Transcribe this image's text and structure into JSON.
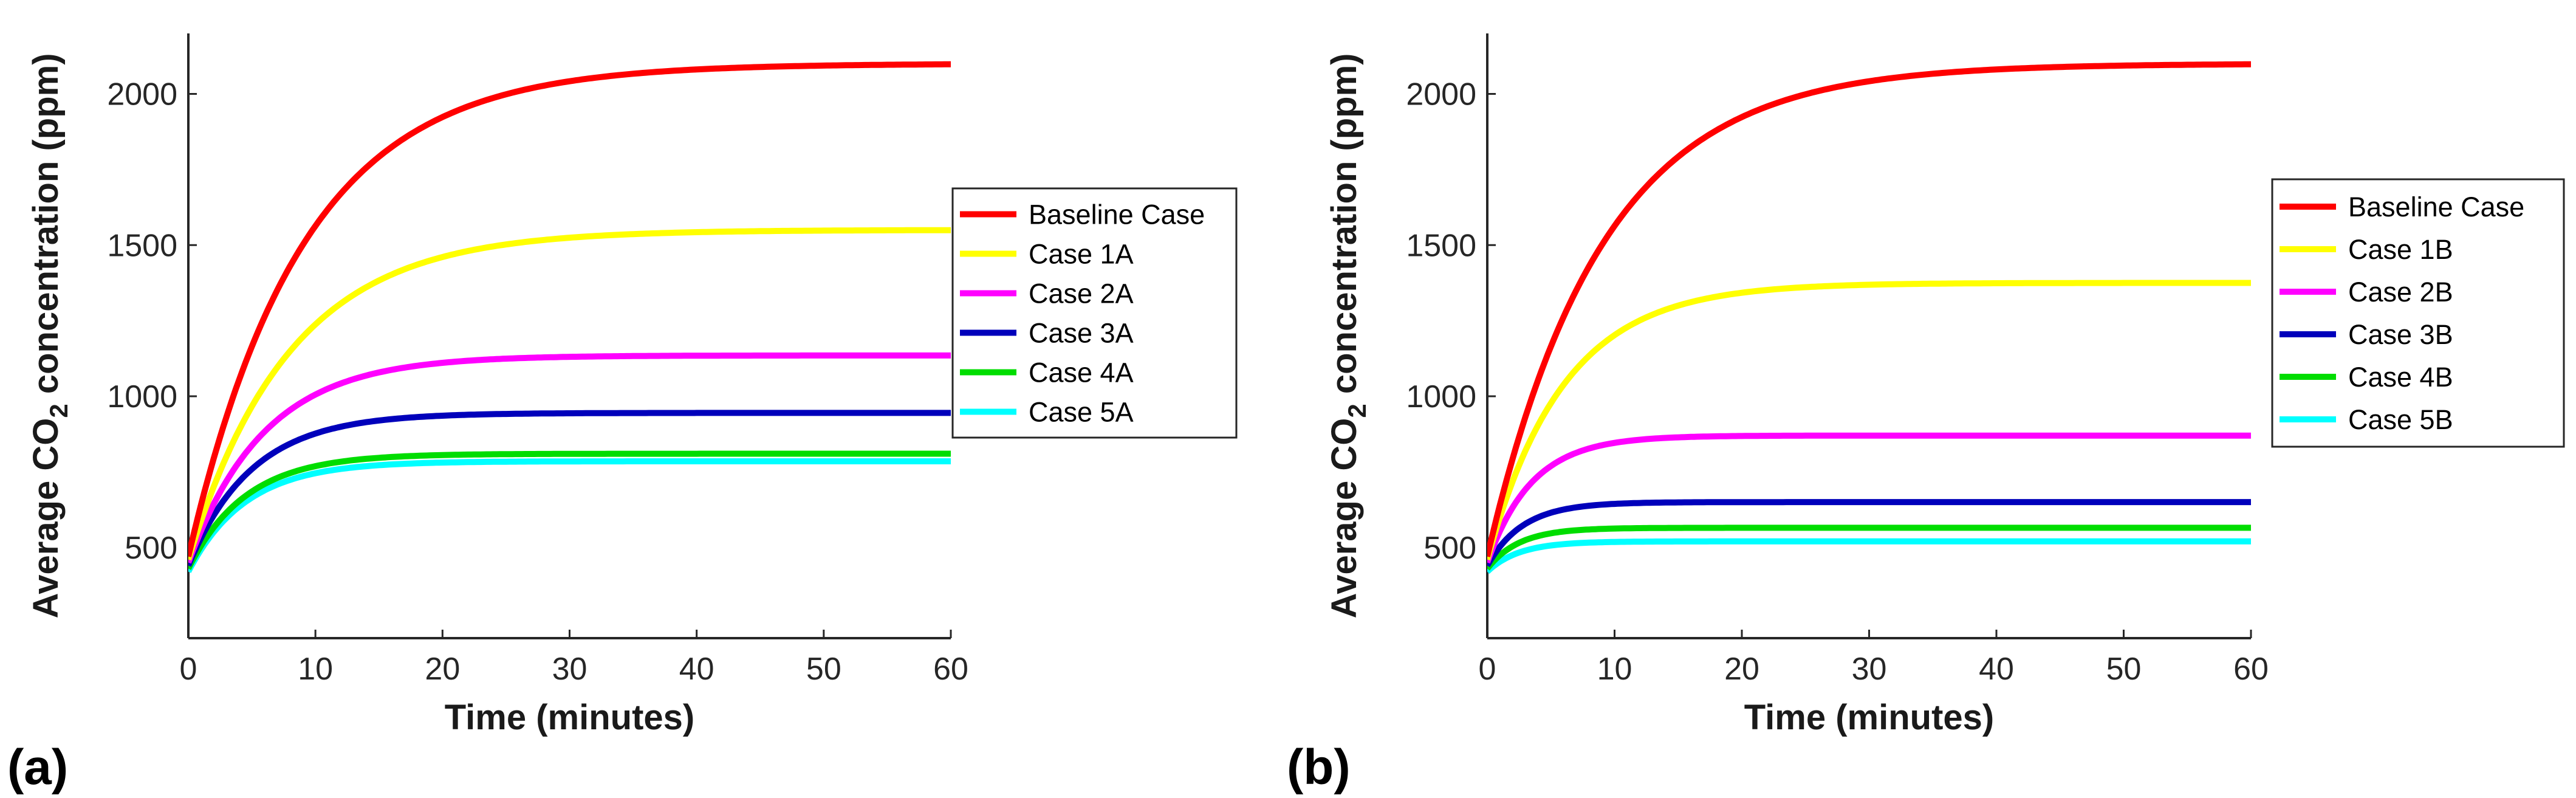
{
  "chart_data": [
    {
      "type": "line",
      "panel_label": "(a)",
      "xlabel": "Time (minutes)",
      "ylabel": "Average CO2 concentration (ppm)",
      "xlim": [
        0,
        60
      ],
      "ylim": [
        200,
        2200
      ],
      "xticks": [
        0,
        10,
        20,
        30,
        40,
        50,
        60
      ],
      "yticks": [
        500,
        1000,
        1500,
        2000
      ],
      "legend": "right",
      "series": [
        {
          "name": "Baseline Case",
          "color": "#ff0000",
          "start": 470,
          "final": 2100,
          "tau": 9.0
        },
        {
          "name": "Case 1A",
          "color": "#ffff00",
          "start": 460,
          "final": 1550,
          "tau": 8.0
        },
        {
          "name": "Case 2A",
          "color": "#ff00ff",
          "start": 450,
          "final": 1135,
          "tau": 6.0
        },
        {
          "name": "Case 3A",
          "color": "#0000bb",
          "start": 440,
          "final": 945,
          "tau": 5.0
        },
        {
          "name": "Case 4A",
          "color": "#00dd00",
          "start": 430,
          "final": 810,
          "tau": 4.5
        },
        {
          "name": "Case 5A",
          "color": "#00ffff",
          "start": 420,
          "final": 785,
          "tau": 4.5
        }
      ]
    },
    {
      "type": "line",
      "panel_label": "(b)",
      "xlabel": "Time (minutes)",
      "ylabel": "Average CO2 concentration (ppm)",
      "xlim": [
        0,
        60
      ],
      "ylim": [
        200,
        2200
      ],
      "xticks": [
        0,
        10,
        20,
        30,
        40,
        50,
        60
      ],
      "yticks": [
        500,
        1000,
        1500,
        2000
      ],
      "legend": "right",
      "series": [
        {
          "name": "Baseline Case",
          "color": "#ff0000",
          "start": 470,
          "final": 2100,
          "tau": 9.0
        },
        {
          "name": "Case 1B",
          "color": "#ffff00",
          "start": 460,
          "final": 1375,
          "tau": 6.0
        },
        {
          "name": "Case 2B",
          "color": "#ff00ff",
          "start": 450,
          "final": 870,
          "tau": 3.5
        },
        {
          "name": "Case 3B",
          "color": "#0000bb",
          "start": 440,
          "final": 650,
          "tau": 2.8
        },
        {
          "name": "Case 4B",
          "color": "#00dd00",
          "start": 430,
          "final": 565,
          "tau": 2.5
        },
        {
          "name": "Case 5B",
          "color": "#00ffff",
          "start": 420,
          "final": 520,
          "tau": 2.5
        }
      ]
    }
  ]
}
